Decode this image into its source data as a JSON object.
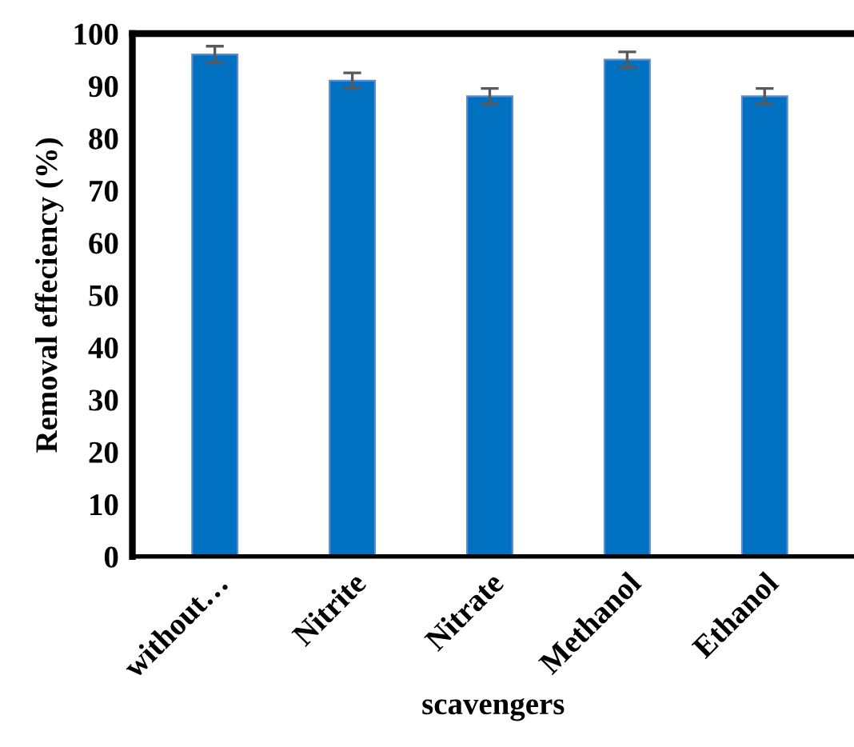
{
  "chart_data": {
    "type": "bar",
    "xlabel": "scavengers",
    "ylabel": "Removal effeciency (%)",
    "categories": [
      "without…",
      "Nitrite",
      "Nitrate",
      "Methanol",
      "Ethanol"
    ],
    "values": [
      96,
      91,
      88,
      95,
      88
    ],
    "errors": [
      1.6,
      1.5,
      1.5,
      1.5,
      1.5
    ],
    "color": "#0070c0",
    "ylim": [
      0,
      100
    ],
    "yticks": [
      0,
      10,
      20,
      30,
      40,
      50,
      60,
      70,
      80,
      90,
      100
    ]
  }
}
